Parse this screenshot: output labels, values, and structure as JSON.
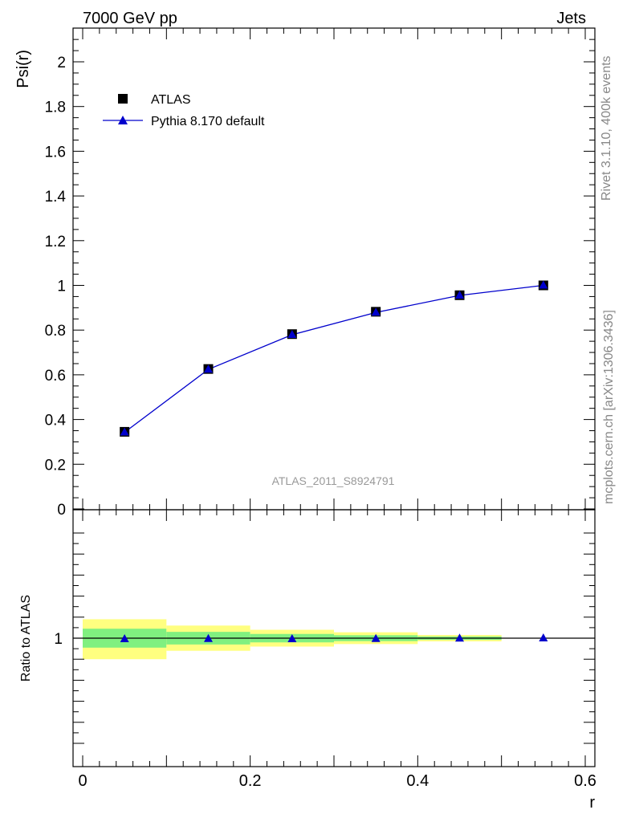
{
  "header": {
    "left": "7000 GeV pp",
    "right": "Jets"
  },
  "side_text": {
    "rivet": "Rivet 3.1.10,  400k events",
    "mcplots": "mcplots.cern.ch [arXiv:1306.3436]"
  },
  "analysis_label": "ATLAS_2011_S8924791",
  "colors": {
    "mc": "#0000cc",
    "stat_band": "#80f080",
    "total_band": "#ffff80",
    "data": "#000000"
  },
  "chart_data": [
    {
      "type": "scatter",
      "ylabel": "Psi(r)",
      "xlim": [
        0,
        0.6
      ],
      "ylim": [
        0,
        2.15
      ],
      "yticks": [
        "0",
        "0.2",
        "0.4",
        "0.6",
        "0.8",
        "1",
        "1.2",
        "1.4",
        "1.6",
        "1.8",
        "2"
      ],
      "legend_position": "top-left",
      "series": [
        {
          "name": "ATLAS",
          "marker": "square",
          "x": [
            0.05,
            0.15,
            0.25,
            0.35,
            0.45,
            0.55
          ],
          "values": [
            0.345,
            0.626,
            0.782,
            0.882,
            0.956,
            1.0
          ]
        },
        {
          "name": "Pythia 8.170 default",
          "marker": "triangle",
          "x": [
            0.05,
            0.15,
            0.25,
            0.35,
            0.45,
            0.55
          ],
          "values": [
            0.343,
            0.624,
            0.779,
            0.879,
            0.955,
            1.0
          ]
        }
      ]
    },
    {
      "type": "scatter",
      "ylabel": "Ratio to ATLAS",
      "xlabel": "r",
      "xlim": [
        0,
        0.6
      ],
      "ylim": [
        0.5,
        1.5
      ],
      "xticks": [
        "0",
        "0.2",
        "0.4",
        "0.6"
      ],
      "yticks": [
        "1"
      ],
      "reference_line": 1,
      "bands": [
        {
          "x": [
            0.0,
            0.1
          ],
          "total": [
            0.9,
            1.09
          ],
          "stat": [
            0.955,
            1.045
          ]
        },
        {
          "x": [
            0.1,
            0.2
          ],
          "total": [
            0.94,
            1.06
          ],
          "stat": [
            0.97,
            1.03
          ]
        },
        {
          "x": [
            0.2,
            0.3
          ],
          "total": [
            0.96,
            1.04
          ],
          "stat": [
            0.98,
            1.02
          ]
        },
        {
          "x": [
            0.3,
            0.4
          ],
          "total": [
            0.972,
            1.028
          ],
          "stat": [
            0.986,
            1.014
          ]
        },
        {
          "x": [
            0.4,
            0.5
          ],
          "total": [
            0.985,
            1.015
          ],
          "stat": [
            0.992,
            1.008
          ]
        }
      ],
      "series": [
        {
          "name": "Pythia 8.170 default",
          "marker": "triangle",
          "x": [
            0.05,
            0.15,
            0.25,
            0.35,
            0.45,
            0.55
          ],
          "values": [
            0.996,
            0.997,
            0.996,
            0.997,
            0.999,
            1.0
          ]
        }
      ]
    }
  ]
}
